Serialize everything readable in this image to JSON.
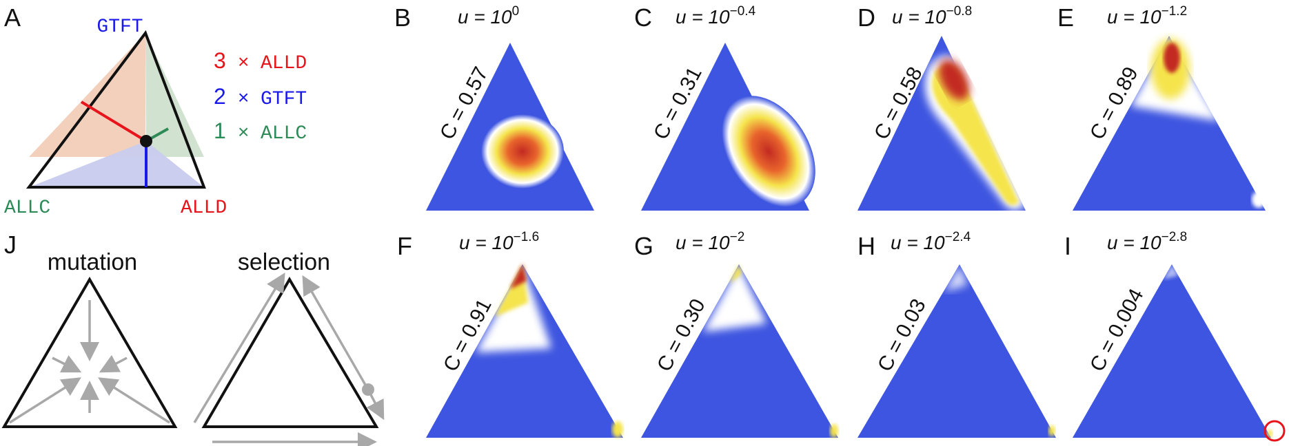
{
  "panel_labels": {
    "A": "A",
    "B": "B",
    "C": "C",
    "D": "D",
    "E": "E",
    "F": "F",
    "G": "G",
    "H": "H",
    "I": "I",
    "J": "J"
  },
  "panel_a": {
    "top": "GTFT",
    "left": "ALLC",
    "right": "ALLD",
    "legend": [
      {
        "num": "3",
        "times": "×",
        "name": "ALLD",
        "color": "#e8141c"
      },
      {
        "num": "2",
        "times": "×",
        "name": "GTFT",
        "color": "#1a1ae8"
      },
      {
        "num": "1",
        "times": "×",
        "name": "ALLC",
        "color": "#2e8b57"
      }
    ]
  },
  "panels": [
    {
      "id": "B",
      "u_base": "u = 10",
      "u_exp": "0",
      "c_label": "C = 0.57"
    },
    {
      "id": "C",
      "u_base": "u = 10",
      "u_exp": "−0.4",
      "c_label": "C = 0.31"
    },
    {
      "id": "D",
      "u_base": "u = 10",
      "u_exp": "−0.8",
      "c_label": "C = 0.58"
    },
    {
      "id": "E",
      "u_base": "u = 10",
      "u_exp": "−1.2",
      "c_label": "C = 0.89"
    },
    {
      "id": "F",
      "u_base": "u = 10",
      "u_exp": "−1.6",
      "c_label": "C = 0.91"
    },
    {
      "id": "G",
      "u_base": "u = 10",
      "u_exp": "−2",
      "c_label": "C = 0.30"
    },
    {
      "id": "H",
      "u_base": "u = 10",
      "u_exp": "−2.4",
      "c_label": "C = 0.03"
    },
    {
      "id": "I",
      "u_base": "u = 10",
      "u_exp": "−2.8",
      "c_label": "C = 0.004"
    }
  ],
  "panel_j": {
    "left_title": "mutation",
    "right_title": "selection"
  },
  "colors": {
    "field": "#3d55e0",
    "hot": "#c62828",
    "warm": "#f3e34a",
    "red_marker": "#e8141c",
    "arrow": "#a8a8a8"
  }
}
